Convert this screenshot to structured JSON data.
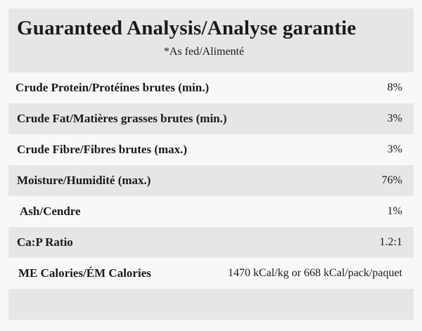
{
  "header": {
    "title": "Guaranteed Analysis/Analyse garantie",
    "subtitle": "*As fed/Alimenté"
  },
  "table": {
    "rows": [
      [
        "Crude Protein/Protéines brutes (min.)",
        "8%"
      ],
      [
        "Crude Fat/Matières grasses brutes (min.)",
        "3%"
      ],
      [
        "Crude Fibre/Fibres brutes (max.)",
        "3%"
      ],
      [
        "Moisture/Humidité (max.)",
        "76%"
      ],
      [
        "Ash/Cendre",
        "1%"
      ],
      [
        "Ca:P Ratio",
        "1.2:1"
      ],
      [
        "ME Calories/ÉM Calories",
        "1470 kCal/kg or 668 kCal/pack/paquet"
      ]
    ]
  }
}
